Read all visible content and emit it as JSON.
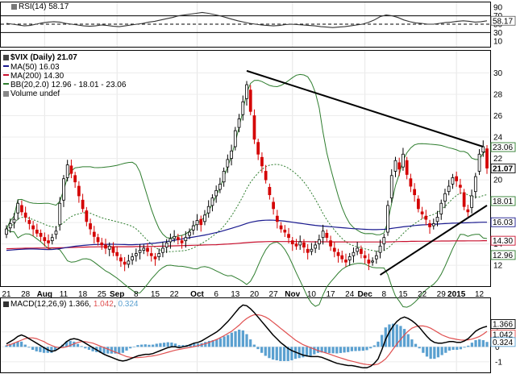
{
  "chart_data": {
    "type": "line",
    "colors": {
      "up": "#000000",
      "down": "#d40000",
      "ma50": "#1a1a8f",
      "ma200": "#c8102e",
      "bb": "#2e7d2e",
      "macd": "#000000",
      "signal": "#e05050",
      "hist": "#5aa0d0",
      "trendline": "#000000"
    },
    "rsi_panel": {
      "title": "RSI(14) 58.17",
      "ylim": [
        0,
        100
      ],
      "ticks": [
        "90",
        "70",
        "50",
        "30",
        "10"
      ],
      "badge": "58.17",
      "values": [
        52,
        50,
        48,
        46,
        47,
        50,
        53,
        55,
        56,
        55,
        52,
        50,
        48,
        46,
        45,
        46,
        48,
        47,
        45,
        44,
        46,
        48,
        50,
        52,
        55,
        57,
        60,
        63,
        66,
        70,
        72,
        74,
        76,
        78,
        76,
        73,
        70,
        66,
        62,
        58,
        55,
        52,
        50,
        48,
        47,
        46,
        47,
        49,
        50,
        49,
        48,
        47,
        46,
        44,
        43,
        42,
        43,
        44,
        46,
        48,
        50,
        54,
        60,
        68,
        72,
        70,
        66,
        60,
        56,
        53,
        52,
        50,
        50,
        52,
        54,
        55,
        57,
        58,
        57,
        55,
        56,
        58
      ]
    },
    "price_panel": {
      "title": "$VIX (Daily) 21.07",
      "legend": [
        {
          "label": "MA(50) 16.03",
          "color": "#1a1a8f"
        },
        {
          "label": "MA(200) 14.30",
          "color": "#c8102e"
        },
        {
          "label": "BB(20,2.0) 12.96 - 18.01 - 23.06",
          "color": "#2e7d2e"
        },
        {
          "label": "Volume undef",
          "color": "#888888"
        }
      ],
      "ylim": [
        10.2,
        32
      ],
      "y_ticks": [
        30,
        28,
        26,
        24,
        22,
        20,
        18,
        16,
        14,
        12
      ],
      "badges": [
        {
          "label": "23.06",
          "value": 23.06,
          "color": "#2e7d2e"
        },
        {
          "label": "21.07",
          "value": 21.07,
          "color": "#000000",
          "bold": true
        },
        {
          "label": "18.01",
          "value": 18.01,
          "color": "#2e7d2e"
        },
        {
          "label": "16.03",
          "value": 16.03,
          "color": "#1a1a8f"
        },
        {
          "label": "14.30",
          "value": 14.3,
          "color": "#c8102e"
        },
        {
          "label": "12.96",
          "value": 12.96,
          "color": "#2e7d2e"
        }
      ],
      "close": [
        15.4,
        15.9,
        16.3,
        17.8,
        17.0,
        16.5,
        15.9,
        15.4,
        15.0,
        14.7,
        14.3,
        14.1,
        14.6,
        15.2,
        17.8,
        20.1,
        21.4,
        20.6,
        19.8,
        18.5,
        17.3,
        16.1,
        15.4,
        14.7,
        14.2,
        13.9,
        13.6,
        13.8,
        13.2,
        12.9,
        12.4,
        12.1,
        12.4,
        12.8,
        13.1,
        13.4,
        13.6,
        13.3,
        12.9,
        12.6,
        13.1,
        13.6,
        14.1,
        14.5,
        14.7,
        14.4,
        14.1,
        14.6,
        15.1,
        15.7,
        16.2,
        15.8,
        16.7,
        17.5,
        18.3,
        19.0,
        19.6,
        20.8,
        21.9,
        22.7,
        24.6,
        25.7,
        27.3,
        28.9,
        26.4,
        23.8,
        22.4,
        21.3,
        20.0,
        18.6,
        17.3,
        16.1,
        15.4,
        15.1,
        14.6,
        14.0,
        13.8,
        14.2,
        13.7,
        13.2,
        13.5,
        13.9,
        14.4,
        15.2,
        14.6,
        13.8,
        13.3,
        12.9,
        12.6,
        12.3,
        12.8,
        13.2,
        13.6,
        13.1,
        12.7,
        12.2,
        12.4,
        12.9,
        13.8,
        14.6,
        17.6,
        20.4,
        21.8,
        21.0,
        22.4,
        20.5,
        19.4,
        18.6,
        17.3,
        16.8,
        16.3,
        15.6,
        15.9,
        16.5,
        17.8,
        18.7,
        19.4,
        20.2,
        19.9,
        19.3,
        17.5,
        17.0,
        18.5,
        20.3,
        22.4,
        23.1,
        21.1
      ],
      "open": [
        14.9,
        15.5,
        16.0,
        16.9,
        17.6,
        16.9,
        16.2,
        15.7,
        15.3,
        15.0,
        14.6,
        14.3,
        14.3,
        14.9,
        15.8,
        18.1,
        20.2,
        21.3,
        20.4,
        19.4,
        18.1,
        17.1,
        15.9,
        15.1,
        14.6,
        14.1,
        13.9,
        13.5,
        13.7,
        13.2,
        12.7,
        12.3,
        12.1,
        12.5,
        12.9,
        13.2,
        13.4,
        13.6,
        13.1,
        12.8,
        12.8,
        13.2,
        13.7,
        14.2,
        14.5,
        14.6,
        14.3,
        14.3,
        14.8,
        15.3,
        15.8,
        16.3,
        16.1,
        16.9,
        17.6,
        18.5,
        19.1,
        19.8,
        21.2,
        22.0,
        23.1,
        24.9,
        26.1,
        27.6,
        28.4,
        26.0,
        23.5,
        22.1,
        20.8,
        19.3,
        17.9,
        16.6,
        15.7,
        15.3,
        14.9,
        14.3,
        14.0,
        13.9,
        14.1,
        13.5,
        13.3,
        13.6,
        14.0,
        14.6,
        15.0,
        14.3,
        13.6,
        13.2,
        12.9,
        12.5,
        12.5,
        12.9,
        13.3,
        13.5,
        12.9,
        12.5,
        12.3,
        12.6,
        13.2,
        14.0,
        15.1,
        18.3,
        20.8,
        21.6,
        21.2,
        21.8,
        20.1,
        19.1,
        18.2,
        17.0,
        16.6,
        15.9,
        15.7,
        16.1,
        16.8,
        18.0,
        18.9,
        19.6,
        20.3,
        19.5,
        18.8,
        17.2,
        17.4,
        18.9,
        20.8,
        22.6,
        22.9
      ],
      "ma50": [
        13.4,
        13.42,
        13.45,
        13.48,
        13.5,
        13.52,
        13.53,
        13.53,
        13.52,
        13.5,
        13.48,
        13.47,
        13.48,
        13.52,
        13.56,
        13.62,
        13.68,
        13.73,
        13.78,
        13.82,
        13.86,
        13.89,
        13.92,
        13.94,
        13.95,
        13.96,
        13.96,
        13.97,
        13.97,
        13.96,
        13.95,
        13.94,
        13.93,
        13.93,
        13.94,
        13.96,
        13.99,
        14.02,
        14.05,
        14.08,
        14.12,
        14.17,
        14.22,
        14.28,
        14.34,
        14.4,
        14.46,
        14.52,
        14.58,
        14.64,
        14.7,
        14.76,
        14.83,
        14.9,
        14.98,
        15.06,
        15.15,
        15.25,
        15.35,
        15.46,
        15.57,
        15.68,
        15.8,
        15.92,
        16.02,
        16.1,
        16.16,
        16.2,
        16.22,
        16.23,
        16.22,
        16.2,
        16.17,
        16.13,
        16.08,
        16.03,
        15.98,
        15.93,
        15.88,
        15.83,
        15.78,
        15.74,
        15.7,
        15.67,
        15.64,
        15.61,
        15.58,
        15.55,
        15.52,
        15.49,
        15.46,
        15.43,
        15.41,
        15.39,
        15.37,
        15.35,
        15.34,
        15.34,
        15.35,
        15.37,
        15.4,
        15.45,
        15.5,
        15.55,
        15.6,
        15.64,
        15.68,
        15.72,
        15.75,
        15.78,
        15.8,
        15.82,
        15.84,
        15.86,
        15.88,
        15.9,
        15.92,
        15.94,
        15.95,
        15.96,
        15.97,
        15.98,
        15.99,
        16.01,
        16.02,
        16.03,
        16.03
      ],
      "ma200": [
        13.55,
        13.56,
        13.57,
        13.58,
        13.59,
        13.6,
        13.61,
        13.61,
        13.62,
        13.62,
        13.62,
        13.62,
        13.63,
        13.63,
        13.64,
        13.65,
        13.66,
        13.67,
        13.68,
        13.69,
        13.7,
        13.71,
        13.72,
        13.72,
        13.73,
        13.73,
        13.73,
        13.74,
        13.74,
        13.74,
        13.74,
        13.74,
        13.74,
        13.74,
        13.75,
        13.75,
        13.76,
        13.76,
        13.77,
        13.77,
        13.78,
        13.79,
        13.8,
        13.81,
        13.82,
        13.83,
        13.84,
        13.85,
        13.86,
        13.87,
        13.88,
        13.89,
        13.9,
        13.91,
        13.92,
        13.93,
        13.95,
        13.97,
        13.99,
        14.01,
        14.03,
        14.06,
        14.09,
        14.12,
        14.15,
        14.17,
        14.19,
        14.2,
        14.21,
        14.22,
        14.22,
        14.22,
        14.22,
        14.22,
        14.22,
        14.22,
        14.22,
        14.21,
        14.21,
        14.21,
        14.2,
        14.2,
        14.2,
        14.2,
        14.2,
        14.19,
        14.19,
        14.19,
        14.19,
        14.19,
        14.18,
        14.18,
        14.18,
        14.18,
        14.18,
        14.18,
        14.18,
        14.18,
        14.18,
        14.18,
        14.19,
        14.2,
        14.21,
        14.22,
        14.23,
        14.23,
        14.24,
        14.24,
        14.25,
        14.25,
        14.25,
        14.26,
        14.26,
        14.26,
        14.27,
        14.27,
        14.27,
        14.28,
        14.28,
        14.28,
        14.28,
        14.29,
        14.29,
        14.29,
        14.29,
        14.3,
        14.3
      ],
      "trendlines": [
        {
          "x": [
            63,
            125
          ],
          "y": [
            30.2,
            23.1
          ]
        },
        {
          "x": [
            98,
            126
          ],
          "y": [
            11.1,
            17.6
          ]
        }
      ]
    },
    "x_axis": {
      "labels": [
        {
          "text": "21",
          "index": 0
        },
        {
          "text": "28",
          "index": 5
        },
        {
          "text": "Aug",
          "index": 10,
          "bold": true
        },
        {
          "text": "11",
          "index": 15
        },
        {
          "text": "18",
          "index": 20
        },
        {
          "text": "25",
          "index": 25
        },
        {
          "text": "Sep",
          "index": 29,
          "bold": true
        },
        {
          "text": "8",
          "index": 34
        },
        {
          "text": "15",
          "index": 39
        },
        {
          "text": "22",
          "index": 44
        },
        {
          "text": "Oct",
          "index": 50,
          "bold": true
        },
        {
          "text": "6",
          "index": 55
        },
        {
          "text": "13",
          "index": 60
        },
        {
          "text": "20",
          "index": 65
        },
        {
          "text": "27",
          "index": 70
        },
        {
          "text": "Nov",
          "index": 75,
          "bold": true
        },
        {
          "text": "10",
          "index": 80
        },
        {
          "text": "17",
          "index": 85
        },
        {
          "text": "24",
          "index": 90
        },
        {
          "text": "Dec",
          "index": 94,
          "bold": true
        },
        {
          "text": "8",
          "index": 99
        },
        {
          "text": "15",
          "index": 104
        },
        {
          "text": "22",
          "index": 109
        },
        {
          "text": "29",
          "index": 114
        },
        {
          "text": "2015",
          "index": 118,
          "bold": true
        },
        {
          "text": "12",
          "index": 124
        }
      ]
    },
    "macd_panel": {
      "title_prefix": "MACD(12,26,9)",
      "v1": "1.366",
      "v2": "1.042",
      "v3": "0.324",
      "ylim": [
        -1.6,
        3.2
      ],
      "ticks": [
        "1",
        "0",
        "-1"
      ],
      "badges": [
        {
          "label": "1.366",
          "value": 1.366,
          "color": "#000000"
        },
        {
          "label": "1.042",
          "value": 1.042,
          "color": "#e05050"
        },
        {
          "label": "0.324",
          "value": 0.324,
          "color": "#5aa0d0"
        }
      ],
      "macd": [
        0.2,
        0.35,
        0.5,
        0.7,
        0.8,
        0.7,
        0.55,
        0.4,
        0.25,
        0.1,
        -0.05,
        -0.2,
        -0.3,
        -0.25,
        -0.1,
        0.1,
        0.35,
        0.5,
        0.55,
        0.5,
        0.4,
        0.25,
        0.1,
        -0.05,
        -0.2,
        -0.35,
        -0.5,
        -0.6,
        -0.7,
        -0.8,
        -0.9,
        -0.95,
        -0.9,
        -0.8,
        -0.7,
        -0.6,
        -0.55,
        -0.5,
        -0.5,
        -0.45,
        -0.35,
        -0.25,
        -0.15,
        -0.05,
        0.0,
        0.0,
        -0.05,
        0.0,
        0.05,
        0.15,
        0.25,
        0.3,
        0.4,
        0.55,
        0.7,
        0.85,
        1.0,
        1.2,
        1.45,
        1.7,
        2.0,
        2.3,
        2.6,
        2.8,
        2.75,
        2.55,
        2.3,
        2.0,
        1.7,
        1.4,
        1.1,
        0.8,
        0.55,
        0.3,
        0.1,
        -0.1,
        -0.25,
        -0.35,
        -0.45,
        -0.55,
        -0.6,
        -0.65,
        -0.65,
        -0.65,
        -0.7,
        -0.8,
        -0.9,
        -1.0,
        -1.1,
        -1.15,
        -1.2,
        -1.25,
        -1.25,
        -1.3,
        -1.35,
        -1.4,
        -1.4,
        -1.3,
        -1.1,
        -0.8,
        -0.2,
        0.5,
        1.0,
        1.4,
        1.7,
        1.9,
        2.0,
        1.9,
        1.75,
        1.55,
        1.3,
        1.0,
        0.7,
        0.45,
        0.3,
        0.25,
        0.25,
        0.3,
        0.35,
        0.35,
        0.3,
        0.3,
        0.4,
        0.55,
        0.8,
        1.05,
        1.2,
        1.3,
        1.37
      ],
      "signal": [
        0.1,
        0.15,
        0.25,
        0.35,
        0.45,
        0.55,
        0.6,
        0.6,
        0.55,
        0.45,
        0.35,
        0.2,
        0.1,
        0.0,
        -0.05,
        -0.05,
        0.0,
        0.1,
        0.2,
        0.3,
        0.35,
        0.35,
        0.3,
        0.25,
        0.15,
        0.05,
        -0.05,
        -0.15,
        -0.25,
        -0.35,
        -0.45,
        -0.55,
        -0.65,
        -0.7,
        -0.72,
        -0.72,
        -0.7,
        -0.67,
        -0.64,
        -0.6,
        -0.56,
        -0.5,
        -0.43,
        -0.36,
        -0.29,
        -0.22,
        -0.17,
        -0.12,
        -0.08,
        -0.03,
        0.02,
        0.08,
        0.15,
        0.22,
        0.3,
        0.4,
        0.5,
        0.62,
        0.75,
        0.9,
        1.05,
        1.25,
        1.45,
        1.7,
        1.9,
        2.05,
        2.15,
        2.15,
        2.1,
        2.0,
        1.85,
        1.65,
        1.45,
        1.25,
        1.05,
        0.85,
        0.65,
        0.45,
        0.3,
        0.15,
        0.05,
        -0.05,
        -0.15,
        -0.25,
        -0.32,
        -0.4,
        -0.48,
        -0.57,
        -0.66,
        -0.74,
        -0.82,
        -0.9,
        -0.96,
        -1.02,
        -1.08,
        -1.14,
        -1.18,
        -1.2,
        -1.2,
        -1.15,
        -1.0,
        -0.8,
        -0.5,
        -0.15,
        0.2,
        0.5,
        0.8,
        1.05,
        1.25,
        1.35,
        1.4,
        1.4,
        1.35,
        1.25,
        1.1,
        0.95,
        0.8,
        0.7,
        0.6,
        0.55,
        0.5,
        0.46,
        0.45,
        0.47,
        0.52,
        0.6,
        0.7,
        0.85,
        1.04
      ]
    }
  }
}
